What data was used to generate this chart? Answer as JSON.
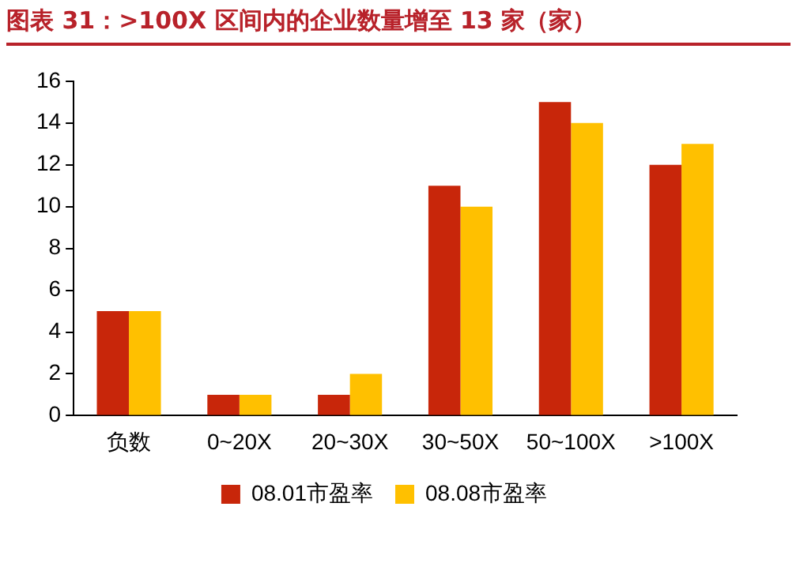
{
  "chart_data": {
    "type": "bar",
    "title": "图表 31：>100X 区间内的企业数量增至 13 家（家）",
    "categories": [
      "负数",
      "0~20X",
      "20~30X",
      "30~50X",
      "50~100X",
      ">100X"
    ],
    "series": [
      {
        "name": "08.01市盈率",
        "color": "#c8260a",
        "values": [
          5,
          1,
          1,
          11,
          15,
          12
        ]
      },
      {
        "name": "08.08市盈率",
        "color": "#ffc000",
        "values": [
          5,
          1,
          2,
          10,
          14,
          13
        ]
      }
    ],
    "ylim": [
      0,
      16
    ],
    "yticks": [
      0,
      2,
      4,
      6,
      8,
      10,
      12,
      14,
      16
    ],
    "grid": false,
    "legend": "bottom"
  }
}
